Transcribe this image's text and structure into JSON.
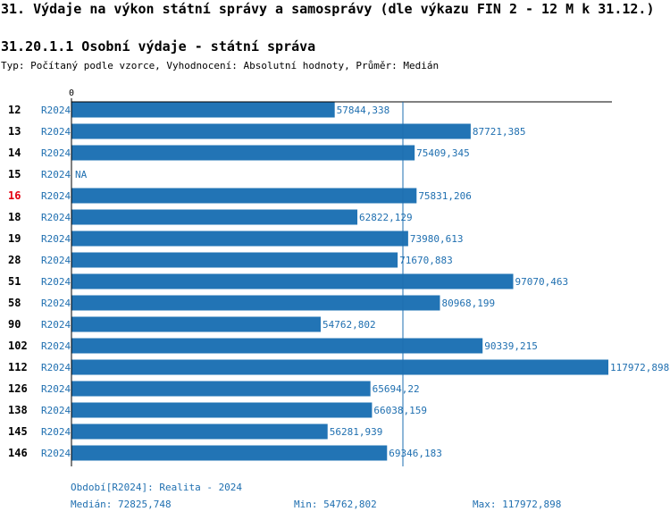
{
  "title": "31. Výdaje na výkon státní správy a samosprávy (dle výkazu FIN 2 - 12 M k 31.12.)",
  "subtitle": "31.20.1.1 Osobní výdaje - státní správa",
  "type_line": "Typ: Počítaný podle vzorce, Vyhodnocení: Absolutní hodnoty, Průměr: Medián",
  "colors": {
    "bar": "#2274b5",
    "label": "#1f6fb0",
    "highlight": "#e3000f",
    "axis": "#000000",
    "median_line": "#1f6fb0"
  },
  "chart_data": {
    "type": "bar",
    "orientation": "horizontal",
    "axis_zero_label": "0",
    "xlim": [
      0,
      117972.898
    ],
    "median": 72825.748,
    "highlight_category": "16",
    "rows": [
      {
        "category": "12",
        "period": "R2024",
        "value": 57844.338,
        "label": "57844,338"
      },
      {
        "category": "13",
        "period": "R2024",
        "value": 87721.385,
        "label": "87721,385"
      },
      {
        "category": "14",
        "period": "R2024",
        "value": 75409.345,
        "label": "75409,345"
      },
      {
        "category": "15",
        "period": "R2024",
        "value": null,
        "label": "NA"
      },
      {
        "category": "16",
        "period": "R2024",
        "value": 75831.206,
        "label": "75831,206"
      },
      {
        "category": "18",
        "period": "R2024",
        "value": 62822.129,
        "label": "62822,129"
      },
      {
        "category": "19",
        "period": "R2024",
        "value": 73980.613,
        "label": "73980,613"
      },
      {
        "category": "28",
        "period": "R2024",
        "value": 71670.883,
        "label": "71670,883"
      },
      {
        "category": "51",
        "period": "R2024",
        "value": 97070.463,
        "label": "97070,463"
      },
      {
        "category": "58",
        "period": "R2024",
        "value": 80968.199,
        "label": "80968,199"
      },
      {
        "category": "90",
        "period": "R2024",
        "value": 54762.802,
        "label": "54762,802"
      },
      {
        "category": "102",
        "period": "R2024",
        "value": 90339.215,
        "label": "90339,215"
      },
      {
        "category": "112",
        "period": "R2024",
        "value": 117972.898,
        "label": "117972,898"
      },
      {
        "category": "126",
        "period": "R2024",
        "value": 65694.22,
        "label": "65694,22"
      },
      {
        "category": "138",
        "period": "R2024",
        "value": 66038.159,
        "label": "66038,159"
      },
      {
        "category": "145",
        "period": "R2024",
        "value": 56281.939,
        "label": "56281,939"
      },
      {
        "category": "146",
        "period": "R2024",
        "value": 69346.183,
        "label": "69346,183"
      }
    ]
  },
  "footer": {
    "period_text": "Období[R2024]: Realita - 2024",
    "median_text": "Medián: 72825,748",
    "min_text": "Min: 54762,802",
    "max_text": "Max: 117972,898"
  }
}
